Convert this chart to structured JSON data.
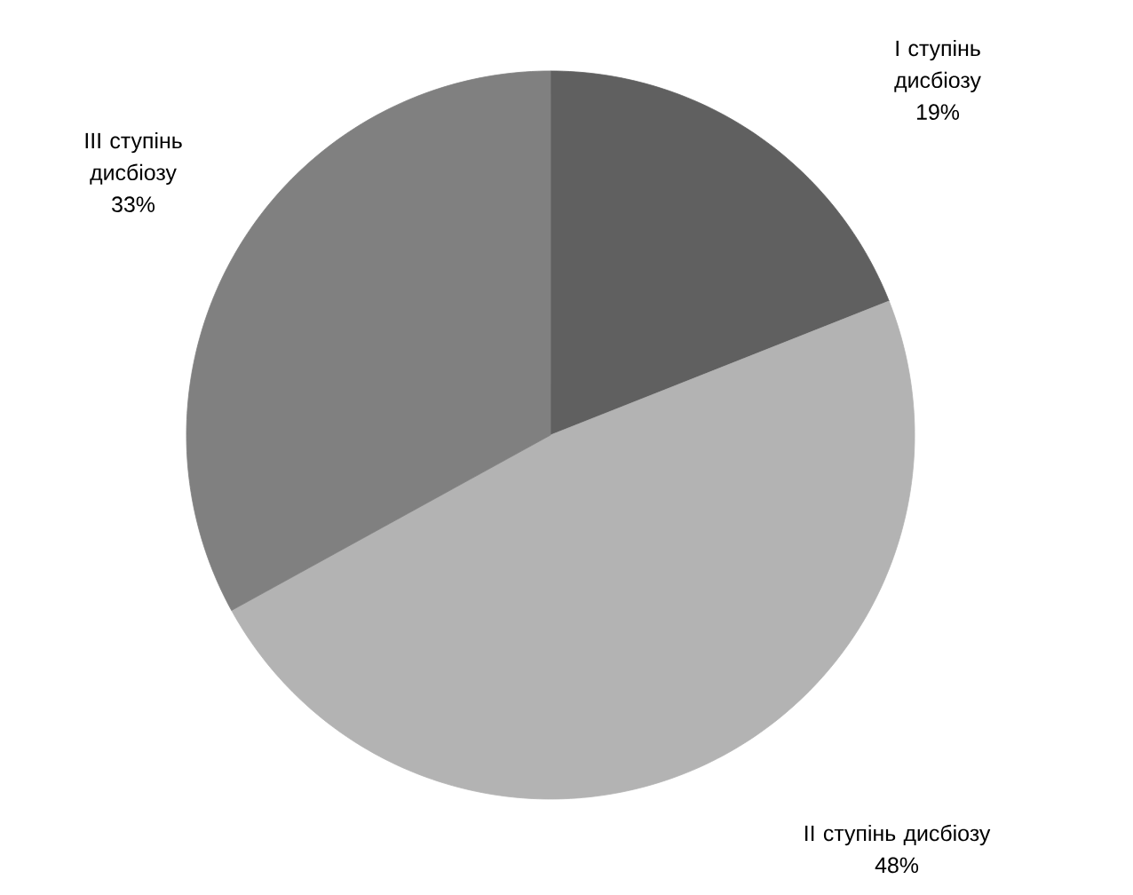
{
  "chart_data": {
    "type": "pie",
    "categories": [
      "I ступінь дисбіозу",
      "II ступінь дисбіозу",
      "III ступінь дисбіозу"
    ],
    "values": [
      19,
      48,
      33
    ],
    "value_labels": [
      "19%",
      "48%",
      "33%"
    ],
    "colors": [
      "#606060",
      "#b3b3b3",
      "#808080"
    ]
  }
}
